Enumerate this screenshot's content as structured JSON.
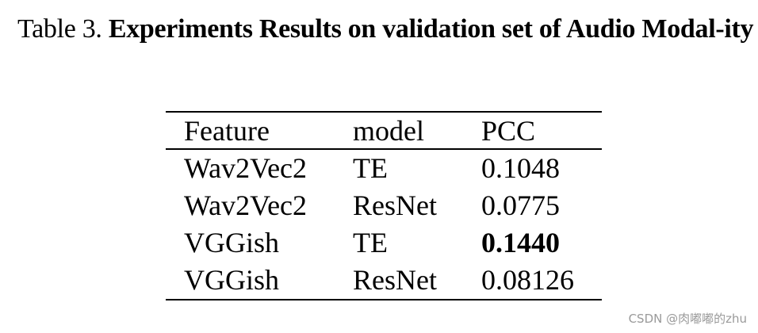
{
  "caption": {
    "label": "Table 3.",
    "title": "Experiments Results on validation set of Audio Modal-ity"
  },
  "table": {
    "headers": [
      "Feature",
      "model",
      "PCC"
    ],
    "rows": [
      {
        "feature": "Wav2Vec2",
        "model": "TE",
        "pcc": "0.1048",
        "bold": false
      },
      {
        "feature": "Wav2Vec2",
        "model": "ResNet",
        "pcc": "0.0775",
        "bold": false
      },
      {
        "feature": "VGGish",
        "model": "TE",
        "pcc": "0.1440",
        "bold": true
      },
      {
        "feature": "VGGish",
        "model": "ResNet",
        "pcc": "0.08126",
        "bold": false
      }
    ]
  },
  "watermark": "CSDN @肉嘟嘟的zhu"
}
